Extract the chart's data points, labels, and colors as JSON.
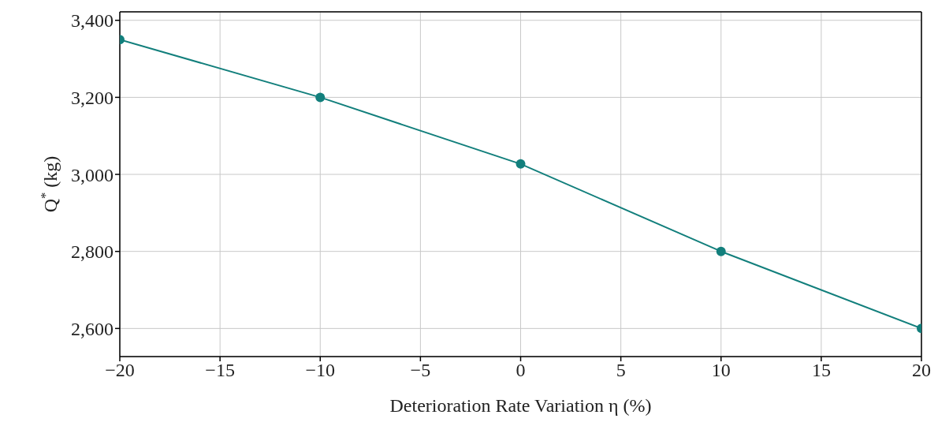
{
  "chart_data": {
    "type": "line",
    "xlabel": "Deterioration Rate Variation η (%)",
    "ylabel": "Q$^{*}$ (kg)",
    "x": [
      -20,
      -10,
      0,
      10,
      20
    ],
    "series": [
      {
        "color": "#127f7c",
        "values": [
          3350,
          3200,
          3027,
          2800,
          2600
        ]
      }
    ],
    "xlim": [
      -20,
      20
    ],
    "xticks": [
      -20,
      -15,
      -10,
      -5,
      0,
      5,
      10,
      15,
      20
    ],
    "ylim": [
      2527,
      3422
    ],
    "yticks": [
      {
        "value": 2600,
        "label": "2,600"
      },
      {
        "value": 2800,
        "label": "2,800"
      },
      {
        "value": 3000,
        "label": "3,000"
      },
      {
        "value": 3200,
        "label": "3,200"
      },
      {
        "value": 3400,
        "label": "3,400"
      }
    ],
    "grid": true,
    "legend": false,
    "marker": "circle",
    "line_style": "solid"
  }
}
